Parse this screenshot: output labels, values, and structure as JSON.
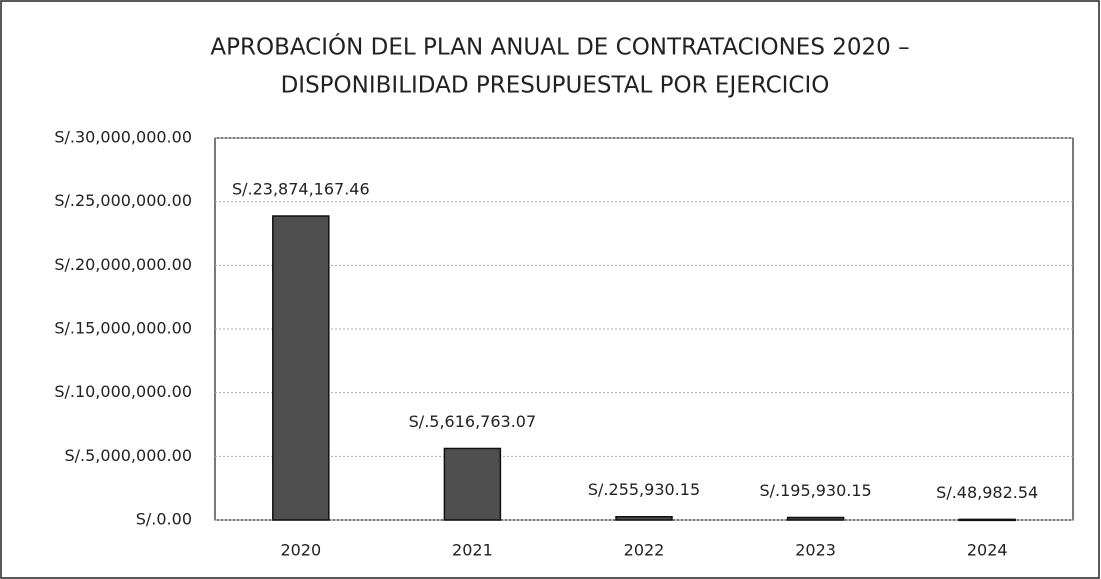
{
  "chart_data": {
    "type": "bar",
    "title": [
      "APROBACIÓN DEL PLAN ANUAL DE CONTRATACIONES 2020 –",
      "DISPONIBILIDAD PRESUPUESTAL POR EJERCICIO"
    ],
    "categories": [
      "2020",
      "2021",
      "2022",
      "2023",
      "2024"
    ],
    "values": [
      23874167.46,
      5616763.07,
      255930.15,
      195930.15,
      48982.54
    ],
    "value_labels": [
      "S/.23,874,167.46",
      "S/.5,616,763.07",
      "S/.255,930.15",
      "S/.195,930.15",
      "S/.48,982.54"
    ],
    "color": "#4f4f4f",
    "ylim": [
      0,
      30000000
    ],
    "yticks": [
      {
        "value": 0,
        "label": "S/.0.00"
      },
      {
        "value": 5000000,
        "label": "S/.5,000,000.00"
      },
      {
        "value": 10000000,
        "label": "S/.10,000,000.00"
      },
      {
        "value": 15000000,
        "label": "S/.15,000,000.00"
      },
      {
        "value": 20000000,
        "label": "S/.20,000,000.00"
      },
      {
        "value": 25000000,
        "label": "S/.25,000,000.00"
      },
      {
        "value": 30000000,
        "label": "S/.30,000,000.00"
      }
    ],
    "grid": true
  }
}
